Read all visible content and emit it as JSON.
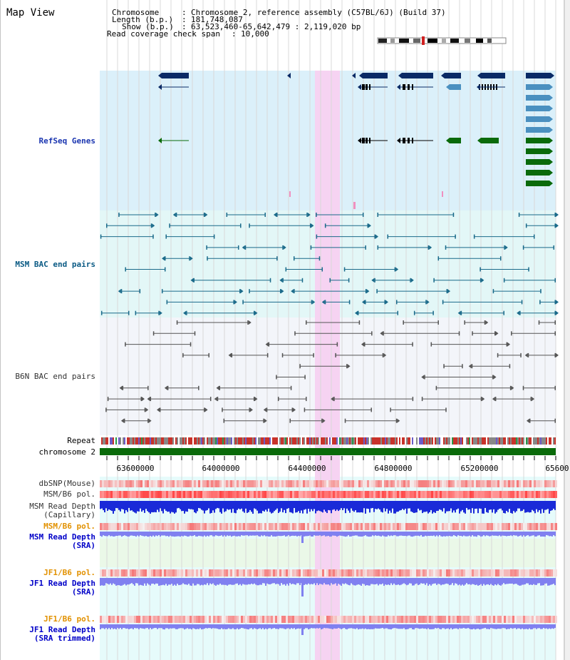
{
  "title": "Map View",
  "info": {
    "chromosome_label": "Chromosome",
    "chromosome_value": "Chromosome 2, reference assembly (C57BL/6J) (Build 37)",
    "length_label": "Length (b.p.)",
    "length_value": "181,748,087",
    "show_label": "Show (b.p.)",
    "show_value": "63,523,460-65,642,479 : 2,119,020 bp",
    "coverage_label": "Read coverage check span",
    "coverage_value": "10,000"
  },
  "tracks": {
    "refseq": "RefSeq Genes",
    "msm_bac": "MSM BAC end pairs",
    "b6n_bac": "B6N BAC end pairs",
    "repeat": "Repeat",
    "chromosome": "chromosome 2",
    "dbsnp": "dbSNP(Mouse)",
    "msm_b6_pol": "MSM/B6 pol.",
    "msm_depth_cap_1": "MSM Read Depth",
    "msm_depth_cap_2": "(Capillary)",
    "msm_b6_pol_2": "MSM/B6 pol.",
    "msm_depth_sra_1": "MSM Read Depth",
    "msm_depth_sra_2": "(SRA)",
    "jf1_b6_pol": "JF1/B6 pol.",
    "jf1_depth_1": "JF1 Read Depth",
    "jf1_depth_2": "(SRA)",
    "jf1_b6_pol_2": "JF1/B6 pol.",
    "jf1_trim_1": "JF1 Read Depth",
    "jf1_trim_2": "(SRA trimmed)"
  },
  "axis": {
    "ticks": [
      "63600000",
      "64000000",
      "64400000",
      "64800000",
      "65200000",
      "65600"
    ]
  },
  "colors": {
    "refseq_bg": "#dbf0fa",
    "msm_bg": "#e3f7f7",
    "b6n_bg": "#f3f5fa",
    "highlight": "#f6d3f2",
    "gene_navy": "#0a2a66",
    "gene_light": "#4a90c0",
    "gene_green": "#0a6a0a",
    "bac_teal": "#1a6a8a",
    "bac_grey": "#555555",
    "chromosome_bar": "#0a6a0a",
    "depth_blue": "#1a2ad8",
    "depth_violet": "#8080f0"
  }
}
